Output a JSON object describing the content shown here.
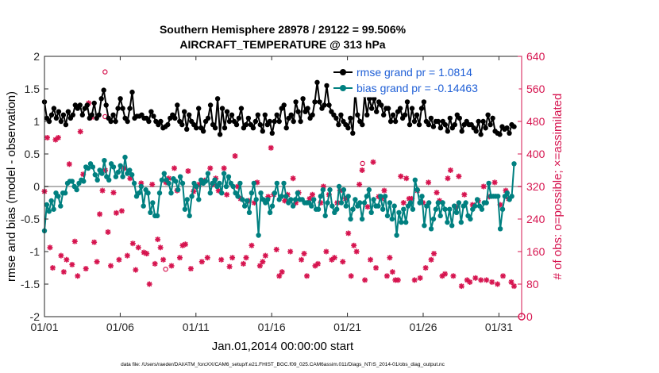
{
  "chart_data": {
    "type": "line",
    "title_line1": "Southern Hemisphere 28978 / 29122 = 99.506%",
    "title_line2": "AIRCRAFT_TEMPERATURE @ 313 hPa",
    "xlabel": "Jan.01,2014 00:00:00 start",
    "ylabel_left": "rmse and bias (model - observation)",
    "ylabel_right": "# of obs: o=possible; ×=assimilated",
    "footnote": "data file: /Users/raeder/DAI/ATM_forcXX/CAM6_setup/f.e21.FHIST_BGC.f09_025.CAM6assim.011/Diags_NTrS_2014-01/obs_diag_output.nc",
    "xlim": [
      1,
      32.5
    ],
    "ylim_left": [
      -2,
      2
    ],
    "ylim_right": [
      0,
      640
    ],
    "x_ticks": [
      1,
      6,
      11,
      16,
      21,
      26,
      31
    ],
    "x_tick_labels": [
      "01/01",
      "01/06",
      "01/11",
      "01/16",
      "01/21",
      "01/26",
      "01/31"
    ],
    "y_left_ticks": [
      "-2",
      "-1.5",
      "-1",
      "-0.5",
      "0",
      "0.5",
      "1",
      "1.5",
      "2"
    ],
    "y_right_ticks": [
      "0",
      "80",
      "160",
      "240",
      "320",
      "400",
      "480",
      "560",
      "640"
    ],
    "legend": [
      "rmse grand pr = 1.0814",
      "bias grand pr = -0.14463"
    ],
    "series": [
      {
        "name": "rmse",
        "color": "#000000",
        "values": [
          1.3,
          1.05,
          1.0,
          1.1,
          1.2,
          1.05,
          1.15,
          1.0,
          1.1,
          0.95,
          1.15,
          1.05,
          1.1,
          1.25,
          1.2,
          1.25,
          1.1,
          1.2,
          1.25,
          1.05,
          1.1,
          1.28,
          1.05,
          1.1,
          1.35,
          1.48,
          1.25,
          1.05,
          1.0,
          1.1,
          1.0,
          1.2,
          1.35,
          1.2,
          1.05,
          1.0,
          1.2,
          1.45,
          1.05,
          1.08,
          1.08,
          1.1,
          1.05,
          1.05,
          1.0,
          1.15,
          1.08,
          1.0,
          0.95,
          1.0,
          0.9,
          0.92,
          0.95,
          1.05,
          1.1,
          1.05,
          1.25,
          1.0,
          0.95,
          1.15,
          0.88,
          1.1,
          1.0,
          0.95,
          0.9,
          1.2,
          0.9,
          0.85,
          1.0,
          1.05,
          1.25,
          0.95,
          0.9,
          1.35,
          0.8,
          1.2,
          0.9,
          1.15,
          1.0,
          1.1,
          1.0,
          0.95,
          1.05,
          1.2,
          0.9,
          0.95,
          1.05,
          0.95,
          0.9,
          1.0,
          1.1,
          0.95,
          0.85,
          1.1,
          0.95,
          1.0,
          0.82,
          1.0,
          1.1,
          1.0,
          1.2,
          1.25,
          0.9,
          1.05,
          1.1,
          1.0,
          1.3,
          1.15,
          1.0,
          1.35,
          1.15,
          1.2,
          1.05,
          1.1,
          1.3,
          1.6,
          1.3,
          1.2,
          1.25,
          1.55,
          1.25,
          1.15,
          1.1,
          1.05,
          0.95,
          1.1,
          1.0,
          0.95,
          0.9,
          1.05,
          0.82,
          1.45,
          1.1,
          1.0,
          0.95,
          1.4,
          1.1,
          1.35,
          1.2,
          1.35,
          1.15,
          1.3,
          1.25,
          1.1,
          1.2,
          1.2,
          1.0,
          1.1,
          1.0,
          1.15,
          1.2,
          1.05,
          1.1,
          1.3,
          0.95,
          1.2,
          1.0,
          1.1,
          0.95,
          1.2,
          1.3,
          1.0,
          0.95,
          1.05,
          0.92,
          1.0,
          1.0,
          0.9,
          1.0,
          0.95,
          0.85,
          1.05,
          0.9,
          0.95,
          1.1,
          1.05,
          0.85,
          0.95,
          1.0,
          0.95,
          0.95,
          0.9,
          0.85,
          1.0,
          0.8,
          1.0,
          0.9,
          1.1,
          0.95,
          1.05,
          0.85,
          0.82,
          0.8,
          0.92,
          0.88,
          0.9,
          0.82,
          0.95,
          0.92
        ]
      },
      {
        "name": "bias",
        "color": "#008080",
        "values": [
          -0.68,
          -0.28,
          -0.38,
          -0.22,
          -0.35,
          -0.1,
          -0.15,
          -0.3,
          -0.1,
          -0.1,
          0.05,
          0.08,
          0.08,
          0.0,
          -0.05,
          0.05,
          0.1,
          0.08,
          0.3,
          0.28,
          0.35,
          0.3,
          0.18,
          0.1,
          0.25,
          0.2,
          0.4,
          0.15,
          0.1,
          0.35,
          0.3,
          0.15,
          0.22,
          0.32,
          0.15,
          0.45,
          0.2,
          0.25,
          0.18,
          0.05,
          -0.15,
          -0.1,
          0.0,
          -0.3,
          -0.05,
          -0.1,
          -0.4,
          -0.25,
          -0.45,
          -0.45,
          -0.1,
          0.1,
          0.2,
          0.1,
          0.05,
          -0.1,
          0.12,
          0.08,
          -0.05,
          0.15,
          0.05,
          -0.35,
          -0.2,
          -0.45,
          -0.15,
          0.05,
          0.0,
          -0.2,
          0.1,
          0.05,
          0.08,
          0.2,
          -0.1,
          0.05,
          0.1,
          0.0,
          0.05,
          -0.1,
          0.2,
          0.0,
          0.15,
          0.05,
          0.0,
          -0.1,
          -0.15,
          0.05,
          -0.2,
          -0.3,
          -0.22,
          -0.4,
          -0.1,
          0.05,
          -0.2,
          -0.75,
          -0.1,
          -0.2,
          -0.25,
          -0.2,
          -0.4,
          -0.3,
          -0.1,
          0.05,
          -0.2,
          -0.15,
          0.05,
          -0.15,
          -0.25,
          -0.2,
          -0.3,
          -0.2,
          -0.1,
          -0.2,
          -0.2,
          -0.25,
          -0.25,
          -0.25,
          -0.3,
          -0.2,
          -0.35,
          -0.35,
          -0.15,
          -0.05,
          -0.45,
          -0.25,
          -0.05,
          -0.3,
          -0.4,
          -0.35,
          0.0,
          -0.25,
          -0.05,
          -0.3,
          -0.15,
          -0.5,
          -0.35,
          -0.2,
          -0.3,
          -0.25,
          -0.5,
          -0.25,
          -0.15,
          -0.05,
          -0.4,
          -0.2,
          -0.3,
          -0.3,
          -0.15,
          -0.35,
          -0.15,
          -0.45,
          -0.25,
          -0.5,
          -0.3,
          -0.75,
          -0.4,
          -0.55,
          -0.35,
          -0.55,
          -0.3,
          -0.25,
          -0.35,
          0.1,
          -0.05,
          -0.25,
          -0.15,
          -0.6,
          -0.3,
          -0.25,
          -0.65,
          -0.5,
          -0.35,
          -0.25,
          -0.45,
          -0.25,
          -0.35,
          -0.55,
          -0.35,
          -0.6,
          -0.3,
          -0.4,
          -0.25,
          -0.55,
          -0.3,
          -0.25,
          -0.45,
          -0.5,
          -0.35,
          -0.3,
          -0.2,
          -0.3,
          -0.35,
          -0.25,
          -0.25,
          0.05,
          -0.15,
          -0.15,
          -0.15,
          -0.15,
          -0.65,
          -0.35,
          -0.15,
          -0.1,
          -0.2,
          -0.15,
          0.35
        ]
      }
    ],
    "obs_counts": {
      "name": "# of obs",
      "color": "#d6144f",
      "values": [
        308,
        440,
        170,
        120,
        435,
        440,
        150,
        110,
        140,
        375,
        128,
        185,
        100,
        455,
        350,
        118,
        525,
        490,
        183,
        135,
        252,
        310,
        360,
        208,
        125,
        305,
        255,
        140,
        260,
        365,
        150,
        340,
        180,
        115,
        170,
        328,
        158,
        155,
        80,
        325,
        130,
        190,
        170,
        140,
        330,
        340,
        125,
        365,
        310,
        145,
        175,
        178,
        358,
        118,
        308,
        320,
        325,
        135,
        335,
        145,
        365,
        325,
        340,
        310,
        140,
        365,
        300,
        123,
        145,
        395,
        320,
        290,
        130,
        145,
        285,
        175,
        280,
        330,
        125,
        135,
        150,
        295,
        415,
        300,
        165,
        100,
        110,
        285,
        300,
        160,
        340,
        280,
        305,
        140,
        155,
        100,
        290,
        300,
        125,
        130,
        280,
        320,
        160,
        300,
        140,
        145,
        280,
        310,
        135,
        290,
        205,
        100,
        175,
        160,
        325,
        360,
        90,
        270,
        140,
        380,
        120,
        295,
        290,
        310,
        100,
        145,
        110,
        90,
        90,
        345,
        280,
        340,
        290,
        290,
        90,
        310,
        95,
        280,
        120,
        330,
        140,
        155,
        305,
        285,
        100,
        105,
        340,
        360,
        100,
        270,
        345,
        75,
        300,
        90,
        85,
        275,
        95,
        285,
        90,
        320,
        90,
        295,
        85,
        330,
        80,
        275,
        100,
        310,
        290,
        85,
        75
      ],
      "o_markers": [
        [
          5,
          590
        ],
        [
          5,
          480
        ],
        [
          9,
          105
        ],
        [
          22,
          365
        ]
      ]
    }
  }
}
